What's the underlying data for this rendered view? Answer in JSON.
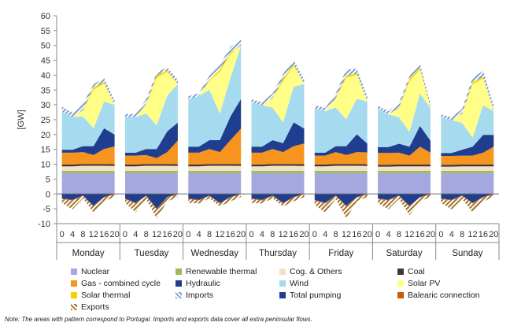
{
  "chart_data": {
    "type": "area",
    "subtype": "stacked",
    "ylabel": "[GW]",
    "ylim": [
      -10,
      60
    ],
    "yticks": [
      -10,
      -5,
      0,
      5,
      10,
      15,
      20,
      25,
      30,
      35,
      40,
      45,
      50,
      55,
      60
    ],
    "days": [
      "Monday",
      "Tuesday",
      "Wednesday",
      "Thursday",
      "Friday",
      "Saturday",
      "Sunday"
    ],
    "hour_ticks": [
      "0",
      "4",
      "8",
      "12",
      "16",
      "20"
    ],
    "hours": [
      0,
      4,
      8,
      12,
      16,
      20
    ],
    "series": [
      {
        "name": "Nuclear",
        "color": "#a4a8de",
        "pattern": "solid",
        "values": [
          [
            7,
            7,
            7,
            7,
            7,
            7
          ],
          [
            7,
            7,
            7,
            7,
            7,
            7
          ],
          [
            7,
            7,
            7,
            7,
            7,
            7
          ],
          [
            7,
            7,
            7,
            7,
            7,
            7
          ],
          [
            7,
            7,
            7,
            7,
            7,
            7
          ],
          [
            7,
            7,
            7,
            7,
            7,
            7
          ],
          [
            7,
            7,
            7,
            7,
            7,
            7
          ]
        ]
      },
      {
        "name": "Renewable thermal",
        "color": "#9bbb59",
        "pattern": "solid",
        "values": [
          [
            0.8,
            0.8,
            0.8,
            0.8,
            0.8,
            0.8
          ],
          [
            0.8,
            0.8,
            0.8,
            0.8,
            0.8,
            0.8
          ],
          [
            0.8,
            0.8,
            0.8,
            0.8,
            0.8,
            0.8
          ],
          [
            0.8,
            0.8,
            0.8,
            0.8,
            0.8,
            0.8
          ],
          [
            0.8,
            0.8,
            0.8,
            0.8,
            0.8,
            0.8
          ],
          [
            0.8,
            0.8,
            0.8,
            0.8,
            0.8,
            0.8
          ],
          [
            0.8,
            0.8,
            0.8,
            0.8,
            0.8,
            0.8
          ]
        ]
      },
      {
        "name": "Cog. & Others",
        "color": "#f5dfc6",
        "pattern": "solid",
        "values": [
          [
            1.5,
            1.5,
            1.7,
            1.7,
            1.7,
            1.6
          ],
          [
            1.5,
            1.5,
            1.7,
            1.7,
            1.7,
            1.6
          ],
          [
            1.5,
            1.5,
            1.7,
            1.7,
            1.7,
            1.6
          ],
          [
            1.5,
            1.5,
            1.7,
            1.7,
            1.7,
            1.6
          ],
          [
            1.5,
            1.5,
            1.7,
            1.7,
            1.7,
            1.6
          ],
          [
            1.4,
            1.4,
            1.5,
            1.5,
            1.5,
            1.5
          ],
          [
            1.4,
            1.4,
            1.5,
            1.5,
            1.5,
            1.5
          ]
        ]
      },
      {
        "name": "Coal",
        "color": "#3a3a3a",
        "pattern": "solid",
        "values": [
          [
            0.6,
            0.6,
            0.6,
            0.6,
            0.6,
            0.6
          ],
          [
            0.6,
            0.6,
            0.6,
            0.6,
            0.6,
            0.6
          ],
          [
            0.6,
            0.6,
            0.6,
            0.6,
            0.6,
            0.6
          ],
          [
            0.6,
            0.6,
            0.6,
            0.6,
            0.6,
            0.6
          ],
          [
            0.6,
            0.6,
            0.6,
            0.6,
            0.6,
            0.6
          ],
          [
            0.6,
            0.6,
            0.6,
            0.6,
            0.6,
            0.6
          ],
          [
            0.6,
            0.6,
            0.6,
            0.6,
            0.6,
            0.6
          ]
        ]
      },
      {
        "name": "Gas - combined cycle",
        "color": "#f7941d",
        "pattern": "solid",
        "values": [
          [
            4,
            4,
            4,
            3,
            5,
            6
          ],
          [
            3,
            3,
            3,
            2,
            4,
            8
          ],
          [
            4,
            4,
            5,
            4,
            8,
            12
          ],
          [
            4,
            4,
            5,
            4,
            6,
            7
          ],
          [
            3,
            3,
            4,
            3,
            4,
            4
          ],
          [
            4,
            4,
            4,
            3,
            6,
            4
          ],
          [
            3,
            3,
            3,
            3,
            4,
            6
          ]
        ]
      },
      {
        "name": "Hydraulic",
        "color": "#1f3e8f",
        "pattern": "solid",
        "values": [
          [
            1,
            1,
            2,
            3,
            7,
            4
          ],
          [
            1,
            1,
            2,
            3,
            7,
            6
          ],
          [
            2,
            2,
            3,
            4,
            8,
            10
          ],
          [
            2,
            2,
            3,
            3,
            8,
            5
          ],
          [
            1,
            1,
            2,
            3,
            6,
            3
          ],
          [
            2,
            2,
            3,
            3,
            7,
            4
          ],
          [
            1,
            1,
            2,
            3,
            6,
            4
          ]
        ]
      },
      {
        "name": "Wind",
        "color": "#a6dbef",
        "pattern": "solid",
        "values": [
          [
            13,
            11,
            10,
            6,
            9,
            10
          ],
          [
            12,
            12,
            12,
            8,
            12,
            13
          ],
          [
            16,
            17,
            17,
            9,
            13,
            18
          ],
          [
            15,
            14,
            11,
            7,
            12,
            15
          ],
          [
            15,
            14,
            13,
            9,
            12,
            14
          ],
          [
            13,
            11,
            9,
            5,
            11,
            11
          ],
          [
            12,
            11,
            9,
            3,
            10,
            8
          ]
        ]
      },
      {
        "name": "Solar PV",
        "color": "#ffff88",
        "pattern": "solid",
        "values": [
          [
            0,
            0,
            2,
            13,
            6,
            0
          ],
          [
            0,
            0,
            3,
            16,
            8,
            0
          ],
          [
            0,
            0,
            3,
            14,
            8,
            0
          ],
          [
            0,
            0,
            3,
            14,
            7,
            0
          ],
          [
            0,
            0,
            3,
            14,
            8,
            0
          ],
          [
            0,
            0,
            3,
            17,
            8,
            0
          ],
          [
            0,
            0,
            3,
            18,
            9,
            0
          ]
        ]
      },
      {
        "name": "Solar thermal",
        "color": "#f2d500",
        "pattern": "solid",
        "values": [
          [
            0,
            0,
            0.2,
            0.8,
            0.5,
            0
          ],
          [
            0,
            0,
            0.2,
            0.8,
            0.5,
            0
          ],
          [
            0,
            0,
            0.2,
            0.8,
            0.5,
            0
          ],
          [
            0,
            0,
            0.2,
            0.8,
            0.5,
            0
          ],
          [
            0,
            0,
            0.2,
            0.8,
            0.5,
            0
          ],
          [
            0,
            0,
            0.2,
            0.8,
            0.5,
            0
          ],
          [
            0,
            0,
            0.2,
            0.8,
            0.5,
            0
          ]
        ]
      },
      {
        "name": "Imports",
        "color": "#7f9bd1",
        "pattern": "hatched",
        "values": [
          [
            1.5,
            1.5,
            2,
            1,
            1.5,
            1.5
          ],
          [
            1,
            1,
            1.5,
            1,
            1,
            1.5
          ],
          [
            1,
            1,
            1.5,
            1.5,
            2,
            2
          ],
          [
            1,
            1,
            1.5,
            1.5,
            1.5,
            1.5
          ],
          [
            1,
            1,
            1.5,
            2,
            1.5,
            2
          ],
          [
            1,
            1,
            1.5,
            1,
            1.5,
            1.5
          ],
          [
            1,
            1,
            1.5,
            1.5,
            2,
            2
          ]
        ]
      },
      {
        "name": "Total pumping",
        "color": "#1f3e8f",
        "pattern": "solid",
        "negative": true,
        "values": [
          [
            -1.5,
            -2,
            -0.5,
            -4,
            -1,
            0
          ],
          [
            -1.5,
            -3,
            -0.5,
            -5,
            -1,
            0
          ],
          [
            -1.5,
            -2,
            -0.5,
            -3,
            -1,
            0
          ],
          [
            -1.5,
            -2,
            -0.5,
            -3,
            -1,
            0
          ],
          [
            -2,
            -3,
            -0.5,
            -4,
            -1,
            0
          ],
          [
            -1.5,
            -2,
            -0.5,
            -4,
            -1,
            0
          ],
          [
            -1.5,
            -2,
            -0.5,
            -3,
            -1,
            0
          ]
        ]
      },
      {
        "name": "Balearic connection",
        "color": "#c55a11",
        "pattern": "solid",
        "negative": true,
        "values": [
          [
            -0.2,
            -0.2,
            -0.2,
            -0.2,
            -0.2,
            -0.2
          ],
          [
            -0.2,
            -0.2,
            -0.2,
            -0.2,
            -0.2,
            -0.2
          ],
          [
            -0.2,
            -0.2,
            -0.2,
            -0.2,
            -0.2,
            -0.2
          ],
          [
            -0.2,
            -0.2,
            -0.2,
            -0.2,
            -0.2,
            -0.2
          ],
          [
            -0.2,
            -0.2,
            -0.2,
            -0.2,
            -0.2,
            -0.2
          ],
          [
            -0.2,
            -0.2,
            -0.2,
            -0.2,
            -0.2,
            -0.2
          ],
          [
            -0.2,
            -0.2,
            -0.2,
            -0.2,
            -0.2,
            -0.2
          ]
        ]
      },
      {
        "name": "Exports",
        "color": "#a0722a",
        "pattern": "hatched",
        "negative": true,
        "values": [
          [
            -1.3,
            -3,
            -0.8,
            -2,
            -1.3,
            -0.8
          ],
          [
            -1.3,
            -3,
            -1,
            -3,
            -1.3,
            -0.8
          ],
          [
            -1.3,
            -1,
            -0.8,
            -1,
            -1.3,
            -0.8
          ],
          [
            -1.3,
            -1,
            -0.8,
            -1,
            -1.3,
            -0.8
          ],
          [
            -1.5,
            -3,
            -1,
            -4,
            -1.3,
            -0.8
          ],
          [
            -1.3,
            -3,
            -1,
            -3,
            -1.3,
            -0.8
          ],
          [
            -1.3,
            -3,
            -1,
            -3,
            -1.3,
            -0.8
          ]
        ]
      }
    ],
    "legend_placement": "bottom",
    "grid": false
  },
  "note": "Note: The areas with pattern correspond to Portugal. Imports and exports data cover all extra peninsular flows."
}
